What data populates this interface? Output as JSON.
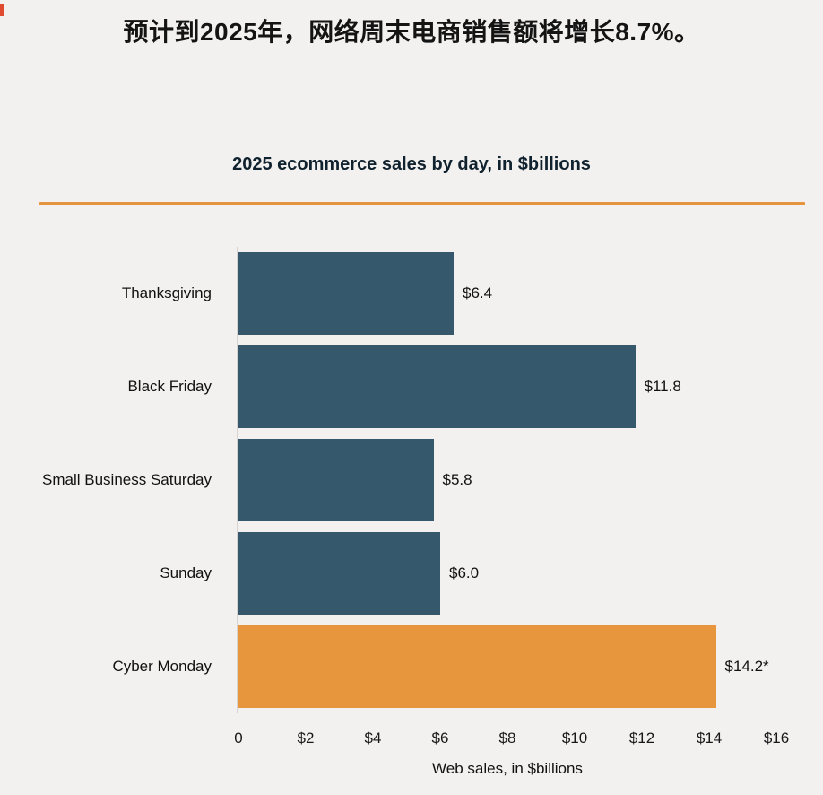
{
  "header": {
    "title": "预计到2025年，网络周末电商销售额将增长8.7%。"
  },
  "chart": {
    "title_bold": "2025 ecommerce sales by day,",
    "title_rest": " in $billions",
    "divider_color": "#e5953d"
  },
  "chart_data": {
    "type": "bar",
    "orientation": "horizontal",
    "title": "2025 ecommerce sales by day, in $billions",
    "categories": [
      "Thanksgiving",
      "Black Friday",
      "Small Business Saturday",
      "Sunday",
      "Cyber Monday"
    ],
    "values": [
      6.4,
      11.8,
      5.8,
      6.0,
      14.2
    ],
    "value_labels": [
      "$6.4",
      "$11.8",
      "$5.8",
      "$6.0",
      "$14.2*"
    ],
    "bar_color": "#36586c",
    "highlight_color": "#e8963e",
    "highlight_index": 4,
    "xlim": [
      0,
      16
    ],
    "x_tick_values": [
      0,
      2,
      4,
      6,
      8,
      10,
      12,
      14,
      16
    ],
    "x_tick_labels": [
      "0",
      "$2",
      "$4",
      "$6",
      "$8",
      "$10",
      "$12",
      "$14",
      "$16"
    ],
    "xlabel": "Web sales, in $billions",
    "legend": "none",
    "grid": "off"
  }
}
